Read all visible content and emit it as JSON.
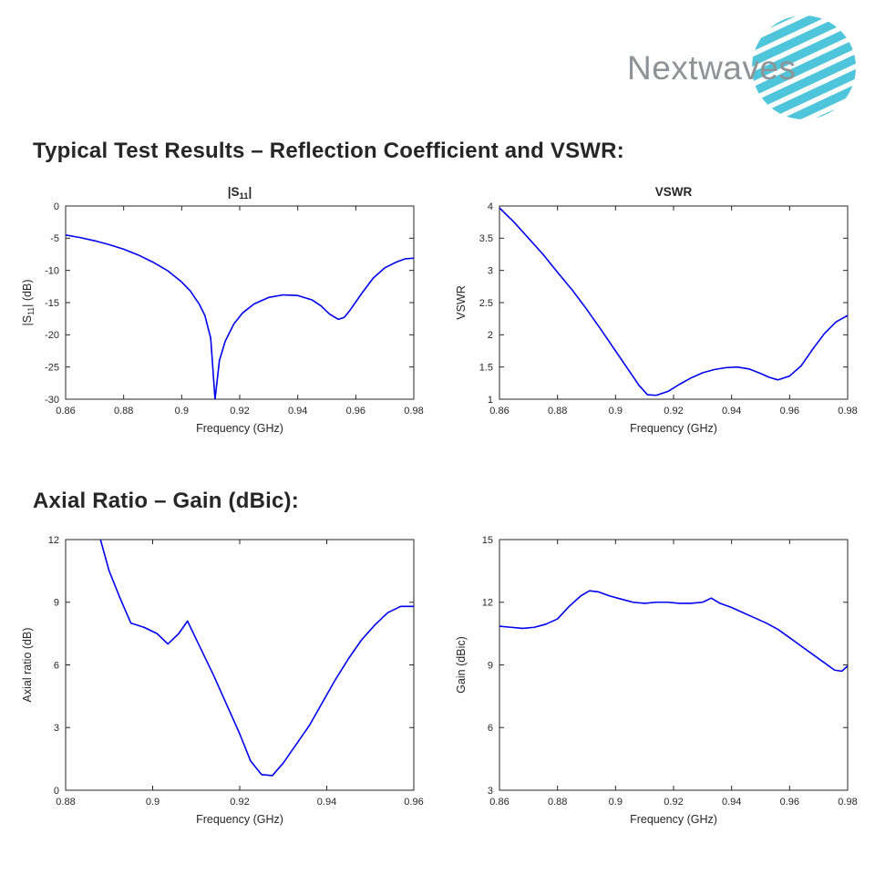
{
  "logo": {
    "text": "Nextwaves",
    "text_color": "#8d9396",
    "globe_color": "#4ec5da"
  },
  "sections": [
    {
      "title": "Typical Test Results – Reflection Coefficient and VSWR:"
    },
    {
      "title": "Axial Ratio – Gain (dBic):"
    }
  ],
  "chart_style": {
    "line_color": "#0000ee",
    "axis_color": "#262626",
    "text_color": "#262626",
    "grid": false,
    "background": "#ffffff"
  },
  "chart_data": [
    {
      "type": "line",
      "title": "|S_{11}|",
      "xlabel": "Frequency (GHz)",
      "ylabel": "|S_{11}| (dB)",
      "xlim": [
        0.86,
        0.98
      ],
      "ylim": [
        -30,
        0
      ],
      "xticks": [
        0.86,
        0.88,
        0.9,
        0.92,
        0.94,
        0.96,
        0.98
      ],
      "yticks": [
        0,
        -5,
        -10,
        -15,
        -20,
        -25,
        -30
      ],
      "x": [
        0.86,
        0.865,
        0.87,
        0.875,
        0.88,
        0.885,
        0.89,
        0.895,
        0.9,
        0.903,
        0.906,
        0.908,
        0.91,
        0.9115,
        0.913,
        0.915,
        0.918,
        0.921,
        0.925,
        0.93,
        0.935,
        0.94,
        0.945,
        0.948,
        0.951,
        0.954,
        0.956,
        0.958,
        0.962,
        0.966,
        0.97,
        0.974,
        0.977,
        0.98
      ],
      "y": [
        -4.5,
        -4.9,
        -5.4,
        -6.0,
        -6.7,
        -7.6,
        -8.7,
        -10.0,
        -11.8,
        -13.2,
        -15.2,
        -17.0,
        -20.5,
        -30,
        -24.0,
        -21.0,
        -18.3,
        -16.6,
        -15.2,
        -14.2,
        -13.8,
        -13.9,
        -14.6,
        -15.5,
        -16.8,
        -17.6,
        -17.3,
        -16.2,
        -13.6,
        -11.2,
        -9.6,
        -8.7,
        -8.2,
        -8.1
      ]
    },
    {
      "type": "line",
      "title": "VSWR",
      "xlabel": "Frequency (GHz)",
      "ylabel": "VSWR",
      "xlim": [
        0.86,
        0.98
      ],
      "ylim": [
        1,
        4
      ],
      "xticks": [
        0.86,
        0.88,
        0.9,
        0.92,
        0.94,
        0.96,
        0.98
      ],
      "yticks": [
        1,
        1.5,
        2,
        2.5,
        3,
        3.5,
        4
      ],
      "x": [
        0.86,
        0.865,
        0.87,
        0.875,
        0.88,
        0.885,
        0.89,
        0.895,
        0.9,
        0.905,
        0.908,
        0.911,
        0.914,
        0.918,
        0.922,
        0.926,
        0.93,
        0.934,
        0.938,
        0.942,
        0.946,
        0.95,
        0.953,
        0.956,
        0.96,
        0.964,
        0.968,
        0.972,
        0.976,
        0.98
      ],
      "y": [
        3.97,
        3.75,
        3.5,
        3.25,
        2.97,
        2.7,
        2.4,
        2.08,
        1.75,
        1.42,
        1.22,
        1.07,
        1.06,
        1.12,
        1.23,
        1.33,
        1.41,
        1.46,
        1.49,
        1.5,
        1.47,
        1.4,
        1.34,
        1.3,
        1.36,
        1.52,
        1.78,
        2.02,
        2.2,
        2.3
      ]
    },
    {
      "type": "line",
      "title": "",
      "xlabel": "Frequency (GHz)",
      "ylabel": "Axial ratio (dB)",
      "xlim": [
        0.88,
        0.96
      ],
      "ylim": [
        0,
        12
      ],
      "xticks": [
        0.88,
        0.9,
        0.92,
        0.94,
        0.96
      ],
      "yticks": [
        0,
        3,
        6,
        9,
        12
      ],
      "x": [
        0.888,
        0.89,
        0.8925,
        0.895,
        0.898,
        0.901,
        0.9035,
        0.906,
        0.908,
        0.911,
        0.914,
        0.917,
        0.92,
        0.9225,
        0.925,
        0.9275,
        0.93,
        0.933,
        0.936,
        0.939,
        0.942,
        0.945,
        0.948,
        0.951,
        0.954,
        0.957,
        0.96
      ],
      "y": [
        12.0,
        10.5,
        9.2,
        8.0,
        7.8,
        7.5,
        7.0,
        7.5,
        8.1,
        6.8,
        5.5,
        4.1,
        2.7,
        1.4,
        0.75,
        0.7,
        1.3,
        2.2,
        3.1,
        4.2,
        5.3,
        6.3,
        7.2,
        7.9,
        8.5,
        8.8,
        8.8
      ]
    },
    {
      "type": "line",
      "title": "",
      "xlabel": "Frequency (GHz)",
      "ylabel": "Gain (dBic)",
      "xlim": [
        0.86,
        0.98
      ],
      "ylim": [
        3,
        15
      ],
      "xticks": [
        0.86,
        0.88,
        0.9,
        0.92,
        0.94,
        0.96,
        0.98
      ],
      "yticks": [
        3,
        6,
        9,
        12,
        15
      ],
      "x": [
        0.86,
        0.864,
        0.868,
        0.872,
        0.876,
        0.88,
        0.884,
        0.888,
        0.891,
        0.894,
        0.898,
        0.902,
        0.906,
        0.91,
        0.914,
        0.918,
        0.922,
        0.926,
        0.93,
        0.933,
        0.936,
        0.94,
        0.944,
        0.948,
        0.952,
        0.956,
        0.96,
        0.964,
        0.968,
        0.972,
        0.9755,
        0.978,
        0.98
      ],
      "y": [
        10.85,
        10.8,
        10.75,
        10.8,
        10.95,
        11.2,
        11.8,
        12.3,
        12.55,
        12.5,
        12.3,
        12.15,
        12.0,
        11.95,
        12.0,
        12.0,
        11.95,
        11.95,
        12.0,
        12.2,
        11.95,
        11.75,
        11.5,
        11.25,
        11.0,
        10.7,
        10.3,
        9.9,
        9.5,
        9.1,
        8.75,
        8.7,
        8.95
      ]
    }
  ]
}
